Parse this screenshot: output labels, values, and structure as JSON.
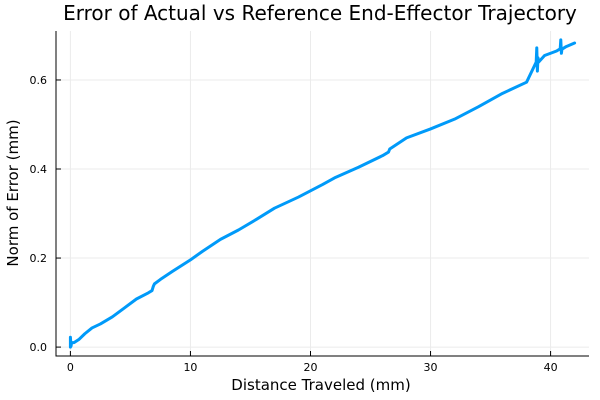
{
  "chart_data": {
    "type": "line",
    "title": "Error of Actual vs Reference End-Effector Trajectory",
    "xlabel": "Distance Traveled (mm)",
    "ylabel": "Norm of Error (mm)",
    "xlim": [
      -1.2,
      43.2
    ],
    "ylim": [
      -0.02,
      0.71
    ],
    "xticks": [
      0,
      10,
      20,
      30,
      40
    ],
    "yticks": [
      0.0,
      0.2,
      0.4,
      0.6
    ],
    "ytick_labels": [
      "0.0",
      "0.2",
      "0.4",
      "0.6"
    ],
    "grid": true,
    "legend": "none",
    "series": [
      {
        "color": "#009AF9",
        "x": [
          0.0,
          0.0,
          0.05,
          0.1,
          0.3,
          0.7,
          1.2,
          1.8,
          2.5,
          3.5,
          4.5,
          5.5,
          6.5,
          6.8,
          6.9,
          7.0,
          7.5,
          8.5,
          10.0,
          11.0,
          12.5,
          14.0,
          15.5,
          17.0,
          19.0,
          21.0,
          22.0,
          24.0,
          26.0,
          26.5,
          26.6,
          28.0,
          30.0,
          32.0,
          34.0,
          36.0,
          38.0,
          38.8,
          38.85,
          38.9,
          38.95,
          39.0,
          39.5,
          40.0,
          40.5,
          40.8,
          40.85,
          40.9,
          40.95,
          41.0,
          41.3,
          42.0
        ],
        "y": [
          0.0,
          0.022,
          0.002,
          0.01,
          0.01,
          0.017,
          0.03,
          0.043,
          0.052,
          0.068,
          0.088,
          0.108,
          0.122,
          0.127,
          0.136,
          0.142,
          0.152,
          0.17,
          0.196,
          0.215,
          0.242,
          0.263,
          0.287,
          0.312,
          0.337,
          0.365,
          0.38,
          0.404,
          0.43,
          0.438,
          0.445,
          0.47,
          0.49,
          0.512,
          0.54,
          0.57,
          0.595,
          0.64,
          0.672,
          0.62,
          0.65,
          0.64,
          0.655,
          0.66,
          0.665,
          0.67,
          0.69,
          0.66,
          0.67,
          0.67,
          0.675,
          0.683
        ]
      }
    ]
  }
}
